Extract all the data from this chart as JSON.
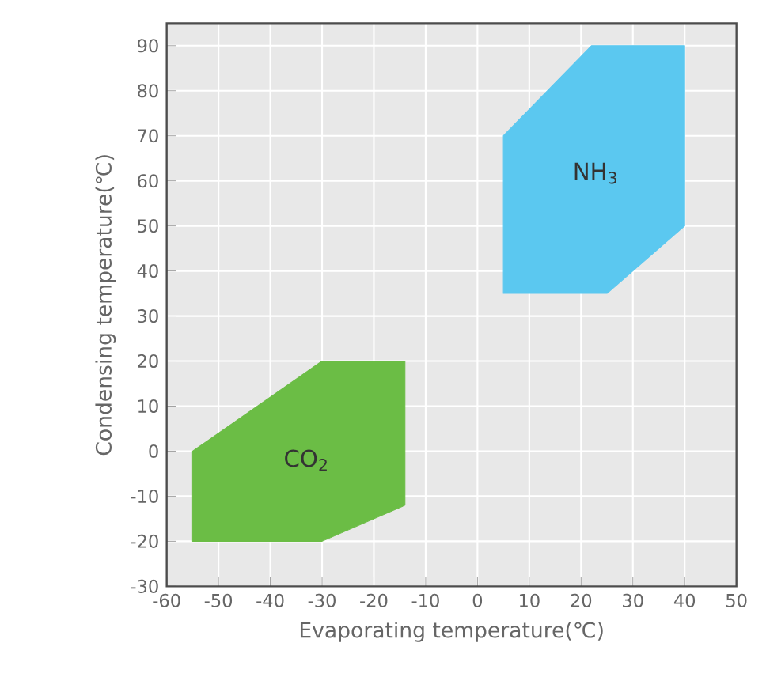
{
  "chart_data": {
    "type": "area",
    "xlabel": "Evaporating temperature(℃)",
    "ylabel": "Condensing temperature(℃)",
    "series": [
      {
        "name": "CO$_{2}$",
        "color": "#6bbd45",
        "x": [
          -55,
          -55,
          -30,
          -14,
          -14,
          -30
        ],
        "values": [
          -20,
          0,
          20,
          20,
          -12,
          -20
        ]
      },
      {
        "name": "NH$_{3}$",
        "color": "#5bc8f0",
        "x": [
          5,
          5,
          22,
          40,
          40,
          25
        ],
        "values": [
          35,
          70,
          90,
          90,
          50,
          35
        ]
      }
    ],
    "xlim": [
      -60,
      50
    ],
    "xticks": [
      -60,
      -50,
      -40,
      -30,
      -20,
      -10,
      0,
      10,
      20,
      30,
      40,
      50
    ],
    "ylim": [
      -30,
      95
    ],
    "yticks": [
      -30,
      -20,
      -10,
      0,
      10,
      20,
      30,
      40,
      50,
      60,
      70,
      80,
      90
    ],
    "grid": true
  }
}
